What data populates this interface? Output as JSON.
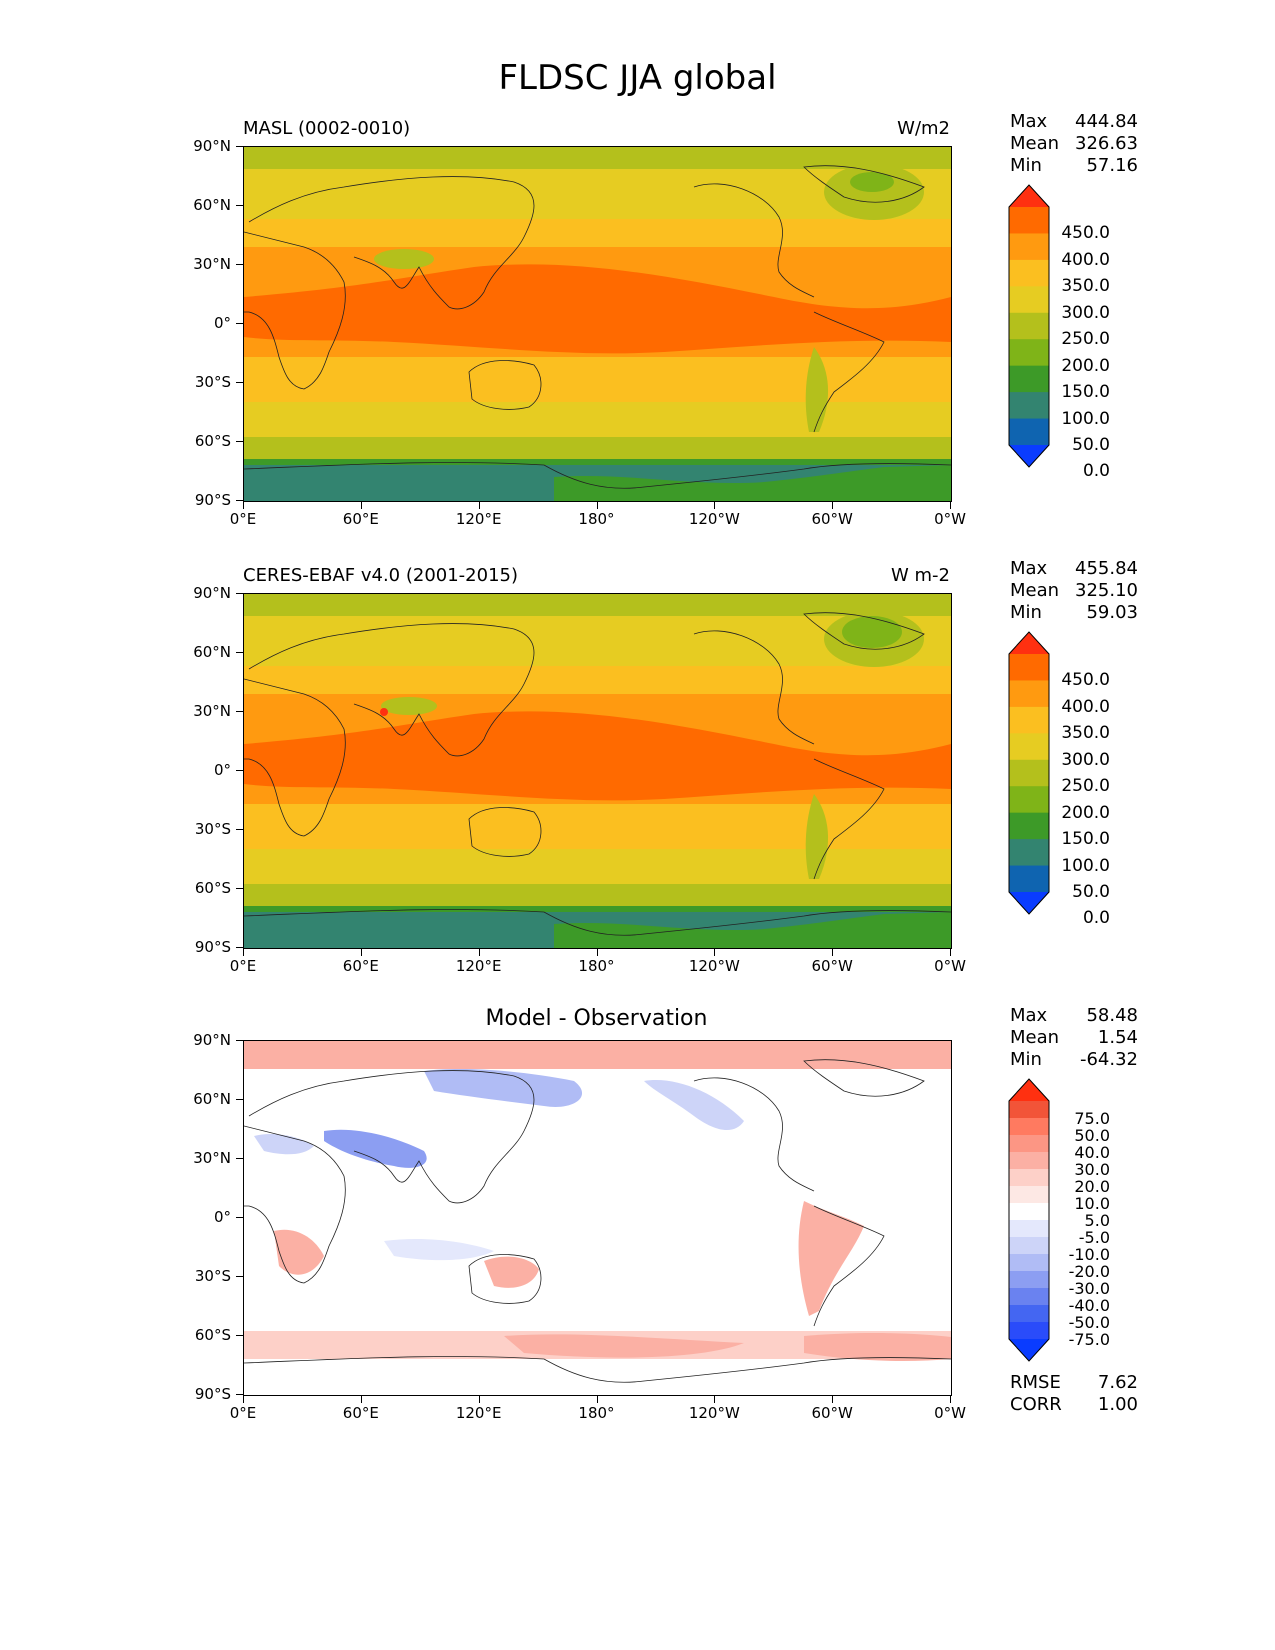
{
  "figure_title": "FLDSC JJA global",
  "x_ticks": [
    "0°E",
    "60°E",
    "120°E",
    "180°",
    "120°W",
    "60°W",
    "0°W"
  ],
  "y_ticks": [
    "90°N",
    "60°N",
    "30°N",
    "0°",
    "30°S",
    "60°S",
    "90°S"
  ],
  "panels": [
    {
      "title_left": "MASL (0002-0010)",
      "units": "W/m2",
      "stats": {
        "max_label": "Max",
        "max": "444.84",
        "mean_label": "Mean",
        "mean": "326.63",
        "min_label": "Min",
        "min": "57.16"
      },
      "colorbar": {
        "labels": [
          "450.0",
          "400.0",
          "350.0",
          "300.0",
          "250.0",
          "200.0",
          "150.0",
          "100.0",
          "50.0",
          "0.0"
        ],
        "colors": [
          "#ff3010",
          "#ff6a00",
          "#ff9a10",
          "#fbbf20",
          "#e6cc22",
          "#b4c01c",
          "#7fb418",
          "#3d9a28",
          "#338470",
          "#0f64b0",
          "#0a3cff"
        ]
      }
    },
    {
      "title_left": "CERES-EBAF v4.0 (2001-2015)",
      "units": "W m-2",
      "stats": {
        "max_label": "Max",
        "max": "455.84",
        "mean_label": "Mean",
        "mean": "325.10",
        "min_label": "Min",
        "min": "59.03"
      },
      "colorbar": {
        "labels": [
          "450.0",
          "400.0",
          "350.0",
          "300.0",
          "250.0",
          "200.0",
          "150.0",
          "100.0",
          "50.0",
          "0.0"
        ],
        "colors": [
          "#ff3010",
          "#ff6a00",
          "#ff9a10",
          "#fbbf20",
          "#e6cc22",
          "#b4c01c",
          "#7fb418",
          "#3d9a28",
          "#338470",
          "#0f64b0",
          "#0a3cff"
        ]
      }
    },
    {
      "title_center": "Model - Observation",
      "stats": {
        "max_label": "Max",
        "max": "58.48",
        "mean_label": "Mean",
        "mean": "1.54",
        "min_label": "Min",
        "min": "-64.32"
      },
      "colorbar": {
        "labels": [
          "75.0",
          "50.0",
          "40.0",
          "30.0",
          "20.0",
          "10.0",
          "5.0",
          "-5.0",
          "-10.0",
          "-20.0",
          "-30.0",
          "-40.0",
          "-50.0",
          "-75.0"
        ],
        "colors": [
          "#ff3010",
          "#f25438",
          "#ff7a60",
          "#fc9684",
          "#fbb0a4",
          "#fdd0c8",
          "#fde8e4",
          "#ffffff",
          "#e4e8fc",
          "#cdd4f8",
          "#b0bcf5",
          "#8c9ef2",
          "#6a82f0",
          "#4466f2",
          "#2a4cfa",
          "#0a3cff"
        ]
      },
      "rmse_label": "RMSE",
      "rmse": "7.62",
      "corr_label": "CORR",
      "corr": "1.00"
    }
  ]
}
